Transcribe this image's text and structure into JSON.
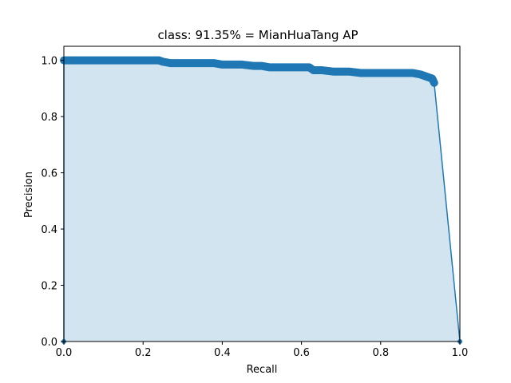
{
  "chart_data": {
    "type": "area",
    "title": "class: 91.35% = MianHuaTang AP",
    "xlabel": "Recall",
    "ylabel": "Precision",
    "xlim": [
      0.0,
      1.0
    ],
    "ylim": [
      0.0,
      1.05
    ],
    "xticks": [
      "0.0",
      "0.2",
      "0.4",
      "0.6",
      "0.8",
      "1.0"
    ],
    "yticks": [
      "0.0",
      "0.2",
      "0.4",
      "0.6",
      "0.8",
      "1.0"
    ],
    "grid": false,
    "colors": {
      "line": "#1f77b4",
      "fill": "#1f77b4"
    },
    "series": [
      {
        "x": [
          0.0,
          0.0,
          0.05,
          0.1,
          0.15,
          0.2,
          0.24,
          0.25,
          0.27,
          0.3,
          0.33,
          0.35,
          0.38,
          0.4,
          0.42,
          0.45,
          0.48,
          0.5,
          0.52,
          0.55,
          0.58,
          0.6,
          0.62,
          0.63,
          0.65,
          0.68,
          0.7,
          0.72,
          0.75,
          0.78,
          0.8,
          0.82,
          0.85,
          0.88,
          0.9,
          0.91,
          0.92,
          0.93,
          0.935,
          1.0
        ],
        "y": [
          0.0,
          1.0,
          1.0,
          1.0,
          1.0,
          1.0,
          1.0,
          0.995,
          0.99,
          0.99,
          0.99,
          0.99,
          0.99,
          0.985,
          0.985,
          0.985,
          0.98,
          0.98,
          0.975,
          0.975,
          0.975,
          0.975,
          0.975,
          0.965,
          0.965,
          0.96,
          0.96,
          0.96,
          0.955,
          0.955,
          0.955,
          0.955,
          0.955,
          0.955,
          0.95,
          0.945,
          0.94,
          0.935,
          0.92,
          0.0
        ]
      }
    ]
  }
}
